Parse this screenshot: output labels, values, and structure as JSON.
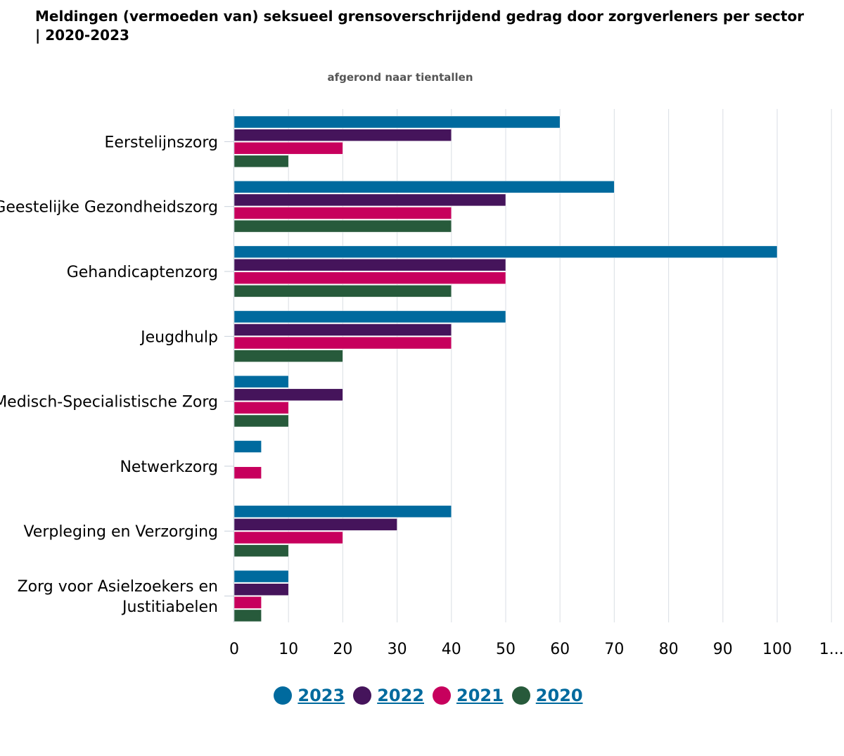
{
  "header": {
    "title": "Meldingen (vermoeden van) seksueel grensoverschrijdend gedrag door zorgverleners per sector | 2020-2023",
    "subtitle": "afgerond naar tientallen"
  },
  "chart_data": {
    "type": "bar",
    "orientation": "horizontal",
    "title": "Meldingen (vermoeden van) seksueel grensoverschrijdend gedrag door zorgverleners per sector | 2020-2023",
    "subtitle": "afgerond naar tientallen",
    "categories": [
      "Eerstelijnszorg",
      "Geestelijke Gezondheidszorg",
      "Gehandicaptenzorg",
      "Jeugdhulp",
      "Medisch-Specialistische Zorg",
      "Netwerkzorg",
      "Verpleging en Verzorging",
      "Zorg voor Asielzoekers en Justitiabelen"
    ],
    "category_lines": [
      [
        "Eerstelijnszorg"
      ],
      [
        "Geestelijke Gezondheidszorg"
      ],
      [
        "Gehandicaptenzorg"
      ],
      [
        "Jeugdhulp"
      ],
      [
        "Medisch-Specialistische Zorg"
      ],
      [
        "Netwerkzorg"
      ],
      [
        "Verpleging en Verzorging"
      ],
      [
        "Zorg voor Asielzoekers en",
        "Justitiabelen"
      ]
    ],
    "series": [
      {
        "name": "2023",
        "color": "#006a9e",
        "values": [
          60,
          70,
          100,
          50,
          10,
          5,
          40,
          10
        ]
      },
      {
        "name": "2022",
        "color": "#45145b",
        "values": [
          40,
          50,
          50,
          40,
          20,
          0,
          30,
          10
        ]
      },
      {
        "name": "2021",
        "color": "#c7005d",
        "values": [
          20,
          40,
          50,
          40,
          10,
          5,
          20,
          5
        ]
      },
      {
        "name": "2020",
        "color": "#275a3b",
        "values": [
          10,
          40,
          40,
          20,
          10,
          0,
          10,
          5
        ]
      }
    ],
    "xlim": [
      0,
      110
    ],
    "x_ticks": [
      "0",
      "10",
      "20",
      "30",
      "40",
      "50",
      "60",
      "70",
      "80",
      "90",
      "100",
      "1..."
    ],
    "xlabel": "",
    "ylabel": "",
    "grid": true,
    "legend_position": "bottom-center",
    "legend_text_color": "#006a9e"
  }
}
